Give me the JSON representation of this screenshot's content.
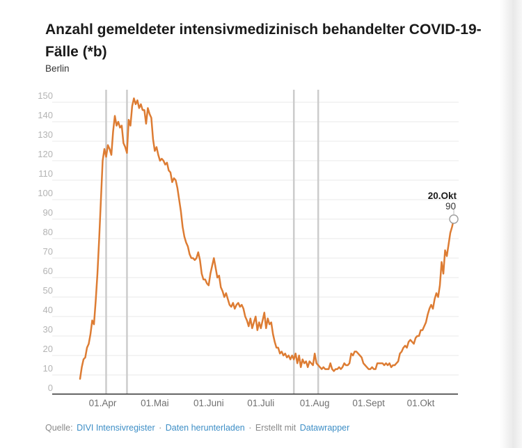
{
  "header": {
    "title": "Anzahl gemeldeter intensivmedizinisch behandelter COVID-19-Fälle (*b)",
    "subtitle": "Berlin"
  },
  "footer": {
    "source_label": "Quelle:",
    "source_link": "DIVI Intensivregister",
    "separator": "·",
    "download_link": "Daten herunterladen",
    "credit_label": "Erstellt mit",
    "credit_link": "Datawrapper"
  },
  "chart_data": {
    "type": "line",
    "title": "Anzahl gemeldeter intensivmedizinisch behandelter COVID-19-Fälle (*b)",
    "subtitle": "Berlin",
    "grid": true,
    "legend": "none",
    "ylim": [
      0,
      150
    ],
    "yticks": [
      0,
      10,
      20,
      30,
      40,
      50,
      60,
      70,
      80,
      90,
      100,
      110,
      120,
      130,
      140,
      150
    ],
    "xticks": [
      {
        "label": "01.Apr",
        "date": "2020-04-01"
      },
      {
        "label": "01.Mai",
        "date": "2020-05-01"
      },
      {
        "label": "01.Juni",
        "date": "2020-06-01"
      },
      {
        "label": "01.Juli",
        "date": "2020-07-01"
      },
      {
        "label": "01.Aug",
        "date": "2020-08-01"
      },
      {
        "label": "01.Sept",
        "date": "2020-09-01"
      },
      {
        "label": "01.Okt",
        "date": "2020-10-01"
      }
    ],
    "vertical_marker_dates": [
      "2020-04-03",
      "2020-04-15",
      "2020-07-20",
      "2020-08-03"
    ],
    "start_date": "2020-03-19",
    "end_date": "2020-10-20",
    "x_unit": "date (daily)",
    "series": [
      {
        "name": "Berlin",
        "color": "#dd7c33",
        "values": [
          8,
          14,
          18,
          19,
          24,
          26,
          31,
          38,
          36,
          48,
          62,
          80,
          100,
          120,
          126,
          122,
          128,
          126,
          123,
          135,
          143,
          138,
          140,
          137,
          138,
          129,
          127,
          124,
          141,
          138,
          148,
          152,
          149,
          151,
          147,
          149,
          146,
          146,
          139,
          147,
          144,
          142,
          131,
          125,
          127,
          123,
          120,
          121,
          120,
          118,
          119,
          115,
          114,
          109,
          111,
          110,
          106,
          100,
          94,
          86,
          81,
          78,
          76,
          72,
          70,
          70,
          69,
          70,
          73,
          69,
          62,
          59,
          59,
          57,
          56,
          62,
          66,
          70,
          65,
          60,
          61,
          55,
          53,
          50,
          52,
          49,
          46,
          45,
          47,
          44,
          46,
          47,
          45,
          46,
          44,
          40,
          38,
          35,
          39,
          34,
          37,
          40,
          33,
          37,
          34,
          38,
          42,
          34,
          39,
          36,
          37,
          31,
          27,
          24,
          24,
          21,
          22,
          20,
          21,
          19,
          20,
          18,
          20,
          18,
          21,
          16,
          20,
          14,
          18,
          16,
          17,
          14,
          17,
          16,
          15,
          21,
          16,
          15,
          14,
          13,
          14,
          13,
          13,
          13,
          16,
          13,
          12,
          13,
          13,
          14,
          13,
          14,
          16,
          15,
          15,
          16,
          21,
          20,
          22,
          22,
          21,
          20,
          19,
          16,
          15,
          14,
          13,
          13,
          14,
          13,
          13,
          16,
          16,
          16,
          16,
          15,
          16,
          15,
          16,
          14,
          15,
          15,
          16,
          17,
          21,
          22,
          24,
          25,
          24,
          27,
          28,
          27,
          26,
          29,
          30,
          30,
          33,
          33,
          35,
          37,
          41,
          44,
          46,
          44,
          49,
          52,
          50,
          56,
          68,
          62,
          74,
          71,
          77,
          83,
          86,
          90
        ]
      }
    ],
    "annotation": {
      "date_label": "20.Okt",
      "value_label": "90",
      "date": "2020-10-20",
      "value": 90
    },
    "colors": {
      "line": "#dd7c33",
      "grid": "#e8e8e8",
      "axis": "#2e2e2e",
      "vertical_marker": "#cccccc",
      "y_tick_label": "#b3b3b3",
      "x_tick_label": "#6f6f6f",
      "annotation_date": "#1a1a1a",
      "annotation_value": "#333333",
      "marker_stroke": "#9c9c9c",
      "link": "#3d8ec6",
      "footer_text": "#898989"
    }
  }
}
